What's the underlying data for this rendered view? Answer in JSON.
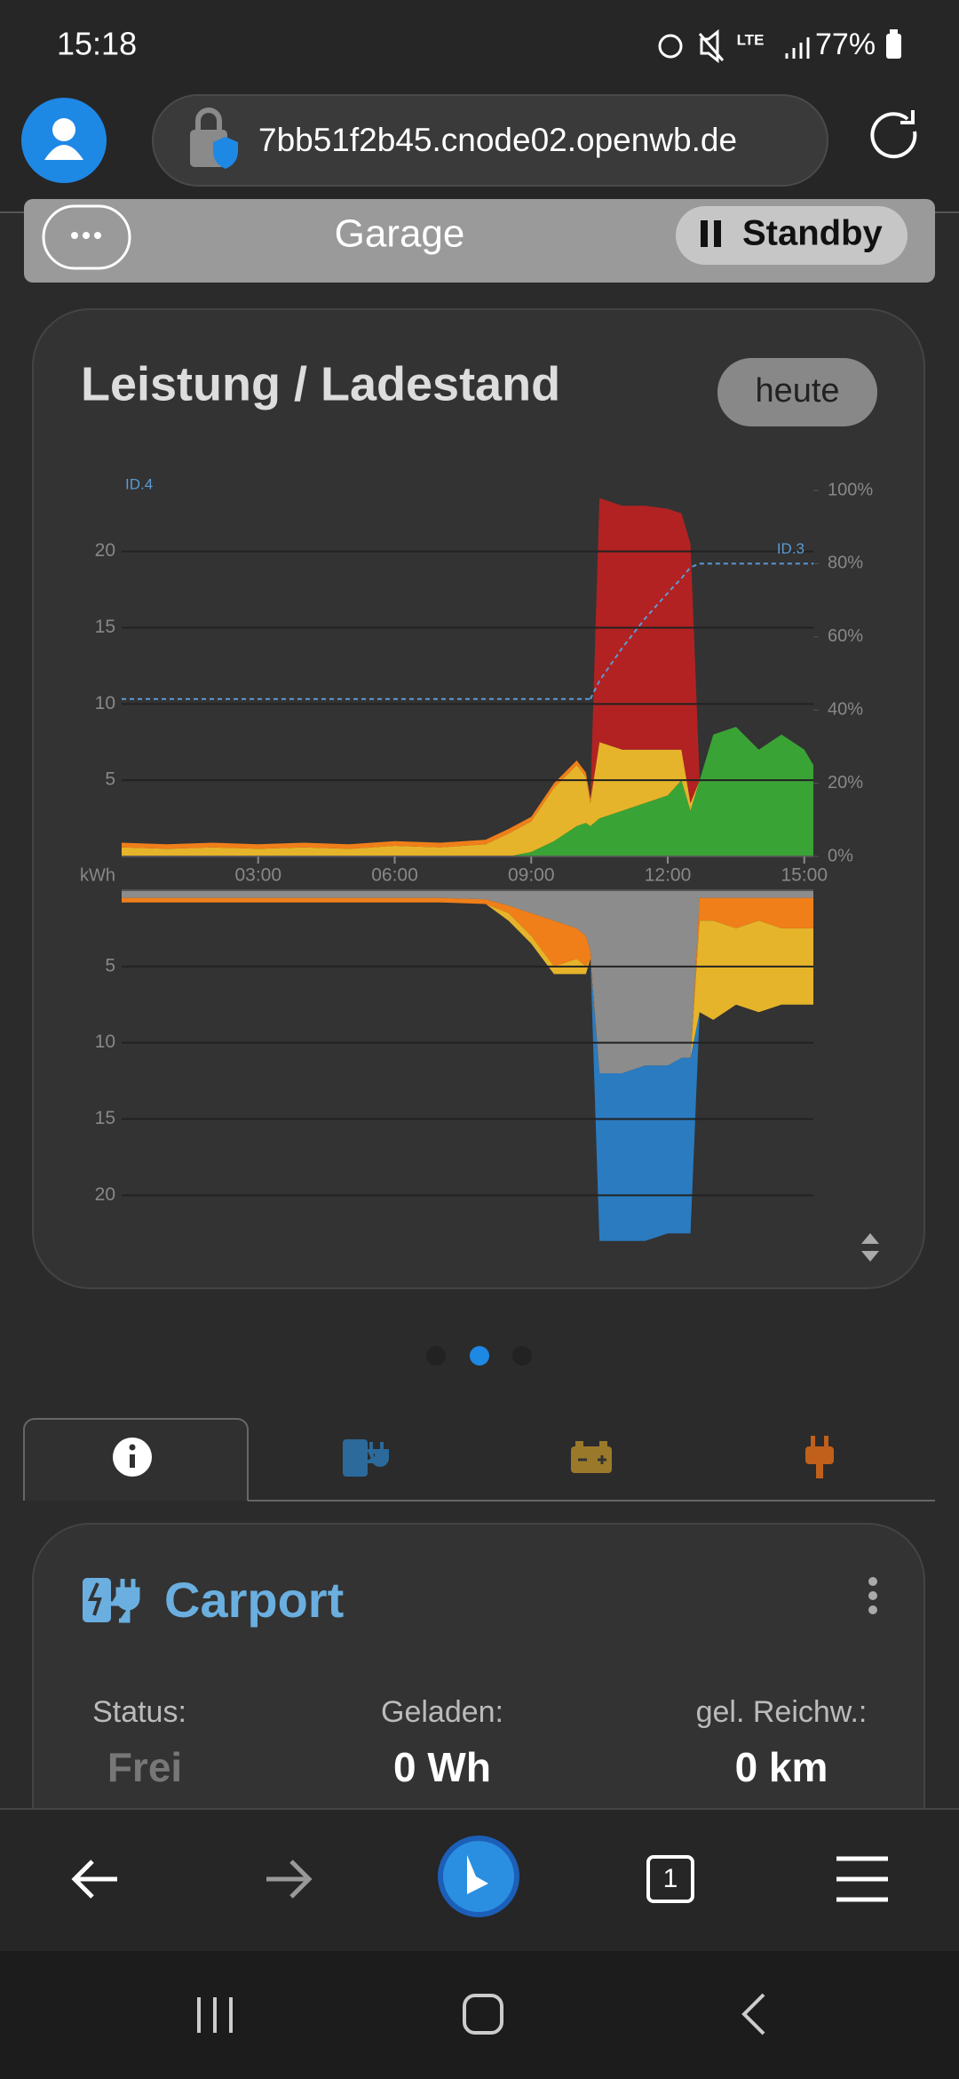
{
  "status_bar": {
    "time": "15:18",
    "network": "LTE",
    "battery": "77%"
  },
  "browser": {
    "url": "7bb51f2b45.cnode02.openwb.de",
    "open_tabs": "1"
  },
  "header": {
    "title": "Garage",
    "status": "Standby"
  },
  "chart_card": {
    "title": "Leistung / Ladestand",
    "range_button": "heute"
  },
  "chart_data": [
    {
      "type": "area",
      "y_label": "kWh",
      "grid": true,
      "x": [
        0,
        1,
        2,
        3,
        4,
        5,
        6,
        7,
        8,
        8.5,
        9,
        9.5,
        10,
        10.2,
        10.3,
        10.5,
        11,
        11.5,
        12,
        12.3,
        12.5,
        12.7,
        13,
        13.5,
        14,
        14.5,
        15,
        15.2
      ],
      "xlim": [
        0,
        15.2
      ],
      "xticks": [
        {
          "value": 3,
          "label": "03:00"
        },
        {
          "value": 6,
          "label": "06:00"
        },
        {
          "value": 9,
          "label": "09:00"
        },
        {
          "value": 12,
          "label": "12:00"
        },
        {
          "value": 15,
          "label": "15:00"
        }
      ],
      "ylim": [
        0,
        24
      ],
      "yticks": [
        5,
        10,
        15,
        20
      ],
      "y2lim": [
        0,
        100
      ],
      "y2ticks": [
        {
          "value": 0,
          "label": "0%"
        },
        {
          "value": 20,
          "label": "20%"
        },
        {
          "value": 40,
          "label": "40%"
        },
        {
          "value": 60,
          "label": "60%"
        },
        {
          "value": 80,
          "label": "80%"
        },
        {
          "value": 100,
          "label": "100%"
        }
      ],
      "series": [
        {
          "color": "#3aa335",
          "values": [
            0,
            0,
            0,
            0,
            0,
            0,
            0,
            0,
            0,
            0,
            0.3,
            1,
            2,
            2.2,
            2,
            2.5,
            3,
            3.5,
            4,
            5,
            3,
            5,
            8,
            8.5,
            7,
            8,
            7,
            6
          ]
        },
        {
          "color": "#e6b42a",
          "values": [
            0.6,
            0.5,
            0.6,
            0.5,
            0.6,
            0.5,
            0.7,
            0.6,
            0.8,
            1.5,
            2,
            3.5,
            4,
            3,
            1.5,
            5,
            4,
            3.5,
            3,
            2,
            0.5,
            0,
            0,
            0,
            0,
            0,
            0,
            0
          ]
        },
        {
          "color": "#f07f19",
          "values": [
            0.3,
            0.3,
            0.3,
            0.3,
            0.3,
            0.3,
            0.3,
            0.3,
            0.3,
            0.3,
            0.3,
            0.3,
            0.3,
            0.3,
            0.3,
            0,
            0,
            0,
            0,
            0,
            0,
            0,
            0,
            0,
            0,
            0,
            0,
            0
          ]
        },
        {
          "color": "#b22222",
          "values": [
            0,
            0,
            0,
            0,
            0,
            0,
            0,
            0,
            0,
            0,
            0,
            0,
            0,
            0,
            0,
            16,
            16,
            16,
            15.8,
            15.5,
            17,
            0,
            0,
            0,
            0,
            0,
            0,
            0
          ]
        },
        {
          "name": "ID.4",
          "type": "line",
          "axis": "y2",
          "dashed": true,
          "color": "#5b9bd5",
          "values": [
            43,
            43,
            43,
            43,
            43,
            43,
            43,
            43,
            43,
            43,
            43,
            43,
            43,
            43,
            43,
            null,
            null,
            null,
            null,
            null,
            null,
            null,
            null,
            null,
            null,
            null,
            null,
            null
          ]
        },
        {
          "name": "ID.3",
          "type": "line",
          "axis": "y2",
          "dashed": true,
          "color": "#5b9bd5",
          "values": [
            null,
            null,
            null,
            null,
            null,
            null,
            null,
            null,
            null,
            null,
            null,
            null,
            null,
            null,
            43,
            48,
            57,
            65,
            72,
            76,
            79,
            80,
            80,
            80,
            80,
            80,
            80,
            80
          ]
        }
      ]
    },
    {
      "type": "area",
      "inverted": true,
      "grid": true,
      "x": [
        0,
        1,
        2,
        3,
        4,
        5,
        6,
        7,
        8,
        8.5,
        9,
        9.5,
        10,
        10.2,
        10.3,
        10.5,
        11,
        11.5,
        12,
        12.3,
        12.5,
        12.7,
        13,
        13.5,
        14,
        14.5,
        15,
        15.2
      ],
      "xlim": [
        0,
        15.2
      ],
      "ylim": [
        0,
        24
      ],
      "yticks": [
        5,
        10,
        15,
        20
      ],
      "series": [
        {
          "color": "#8c8c8c",
          "values": [
            0.5,
            0.5,
            0.5,
            0.5,
            0.5,
            0.5,
            0.5,
            0.5,
            0.6,
            1,
            1.5,
            2,
            2.5,
            3,
            4,
            12,
            12,
            11.5,
            11.5,
            11,
            11,
            0.5,
            0.5,
            0.5,
            0.5,
            0.5,
            0.5,
            0.5
          ]
        },
        {
          "color": "#f07f19",
          "values": [
            0.3,
            0.3,
            0.3,
            0.3,
            0.3,
            0.3,
            0.3,
            0.3,
            0.3,
            0.5,
            1.5,
            3,
            2,
            2,
            0.5,
            0,
            0,
            0,
            0,
            0,
            0,
            1.5,
            1.5,
            2,
            1.5,
            2,
            2,
            2
          ]
        },
        {
          "color": "#e6b42a",
          "values": [
            0,
            0,
            0,
            0,
            0,
            0,
            0,
            0,
            0,
            0.5,
            0.5,
            0.5,
            1,
            0.5,
            0,
            0,
            0,
            0,
            0,
            0,
            0,
            6,
            6.5,
            5,
            6,
            5,
            5,
            5
          ]
        },
        {
          "color": "#2b7bc0",
          "values": [
            0,
            0,
            0,
            0,
            0,
            0,
            0,
            0,
            0,
            0,
            0,
            0,
            0,
            0,
            0,
            11,
            11,
            11.5,
            11,
            11.5,
            11.5,
            0,
            0,
            0,
            0,
            0,
            0,
            0
          ]
        }
      ]
    }
  ],
  "carport": {
    "title": "Carport",
    "fields": [
      {
        "label": "Status:",
        "value": "Frei"
      },
      {
        "label": "Geladen:",
        "value": "0 Wh"
      },
      {
        "label": "gel. Reichw.:",
        "value": "0 km"
      }
    ]
  }
}
